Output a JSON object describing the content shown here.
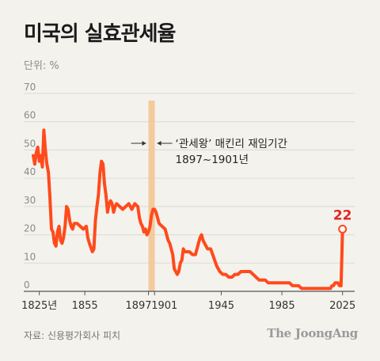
{
  "title": "미국의 실효관세율",
  "unit_label": "단위: %",
  "source": "자료: 신용평가회사 피치",
  "brand": "The JoongAng",
  "colors": {
    "line": "#ff4a1c",
    "band": "#f2c48e",
    "grid": "#dcdad4",
    "axis": "#555555",
    "label_red": "#e02424"
  },
  "chart_data": {
    "type": "line",
    "title": "미국의 실효관세율",
    "ylabel": "단위: %",
    "xlim": [
      1821,
      2033
    ],
    "ylim": [
      0,
      70
    ],
    "yticks": [
      "0",
      "10",
      "20",
      "30",
      "40",
      "50",
      "60",
      "70"
    ],
    "xticks": [
      {
        "x": 1825,
        "label": "1825년"
      },
      {
        "x": 1855,
        "label": "1855"
      },
      {
        "x": 1897,
        "label": "1897"
      },
      {
        "x": 1901,
        "label": "1901"
      },
      {
        "x": 1945,
        "label": "1945"
      },
      {
        "x": 1985,
        "label": "1985"
      },
      {
        "x": 2025,
        "label": "2025"
      }
    ],
    "highlight_band": {
      "x_start": 1897,
      "x_end": 1901,
      "label_line1": "‘관세왕’ 매킨리 재임기간",
      "label_line2": "1897~1901년"
    },
    "end_label": "22",
    "series": [
      {
        "x": [
          1821,
          1822,
          1823,
          1824,
          1825,
          1826,
          1827,
          1828,
          1829,
          1830,
          1831,
          1832,
          1833,
          1834,
          1835,
          1836,
          1837,
          1838,
          1839,
          1840,
          1841,
          1842,
          1843,
          1844,
          1845,
          1846,
          1847,
          1848,
          1850,
          1852,
          1854,
          1856,
          1857,
          1858,
          1860,
          1861,
          1862,
          1863,
          1864,
          1865,
          1866,
          1867,
          1868,
          1869,
          1870,
          1871,
          1872,
          1873,
          1874,
          1875,
          1876,
          1878,
          1880,
          1882,
          1884,
          1886,
          1888,
          1890,
          1891,
          1892,
          1893,
          1894,
          1895,
          1896,
          1897,
          1898,
          1899,
          1900,
          1901,
          1902,
          1904,
          1906,
          1908,
          1909,
          1910,
          1911,
          1913,
          1914,
          1916,
          1917,
          1918,
          1919,
          1920,
          1921,
          1922,
          1924,
          1926,
          1928,
          1930,
          1931,
          1932,
          1933,
          1934,
          1936,
          1938,
          1940,
          1942,
          1944,
          1946,
          1948,
          1950,
          1952,
          1954,
          1956,
          1958,
          1960,
          1962,
          1964,
          1966,
          1968,
          1970,
          1972,
          1974,
          1976,
          1978,
          1980,
          1982,
          1984,
          1986,
          1988,
          1990,
          1992,
          1994,
          1996,
          1998,
          2000,
          2002,
          2004,
          2006,
          2008,
          2010,
          2012,
          2014,
          2016,
          2017,
          2018,
          2019,
          2020,
          2021,
          2022,
          2023,
          2024,
          2025
        ],
        "y": [
          48,
          45,
          49,
          51,
          46,
          48,
          44,
          57,
          50,
          45,
          42,
          33,
          22,
          21,
          17,
          16,
          21,
          23,
          18,
          17,
          19,
          23,
          30,
          29,
          25,
          23,
          22,
          24,
          24,
          23,
          22,
          23,
          19,
          17,
          14,
          15,
          25,
          30,
          34,
          42,
          46,
          45,
          38,
          34,
          28,
          31,
          32,
          31,
          28,
          30,
          31,
          30,
          29,
          30,
          31,
          29,
          31,
          30,
          26,
          24,
          23,
          21,
          22,
          20,
          21,
          23,
          27,
          29,
          29,
          28,
          24,
          23,
          22,
          20,
          18,
          17,
          13,
          8,
          6,
          7,
          10,
          11,
          15,
          14,
          14,
          14,
          13,
          13,
          17,
          19,
          20,
          18,
          17,
          15,
          15,
          12,
          9,
          7,
          6,
          6,
          5,
          5,
          6,
          6,
          7,
          7,
          7,
          7,
          6,
          5,
          4,
          4,
          4,
          3,
          3,
          3,
          3,
          3,
          3,
          3,
          3,
          2,
          2,
          2,
          1,
          1,
          1,
          1,
          1,
          1,
          1,
          1,
          1,
          1,
          1,
          2,
          2,
          3,
          3,
          3,
          2,
          2,
          22
        ],
        "color": "#ff4a1c"
      }
    ]
  }
}
